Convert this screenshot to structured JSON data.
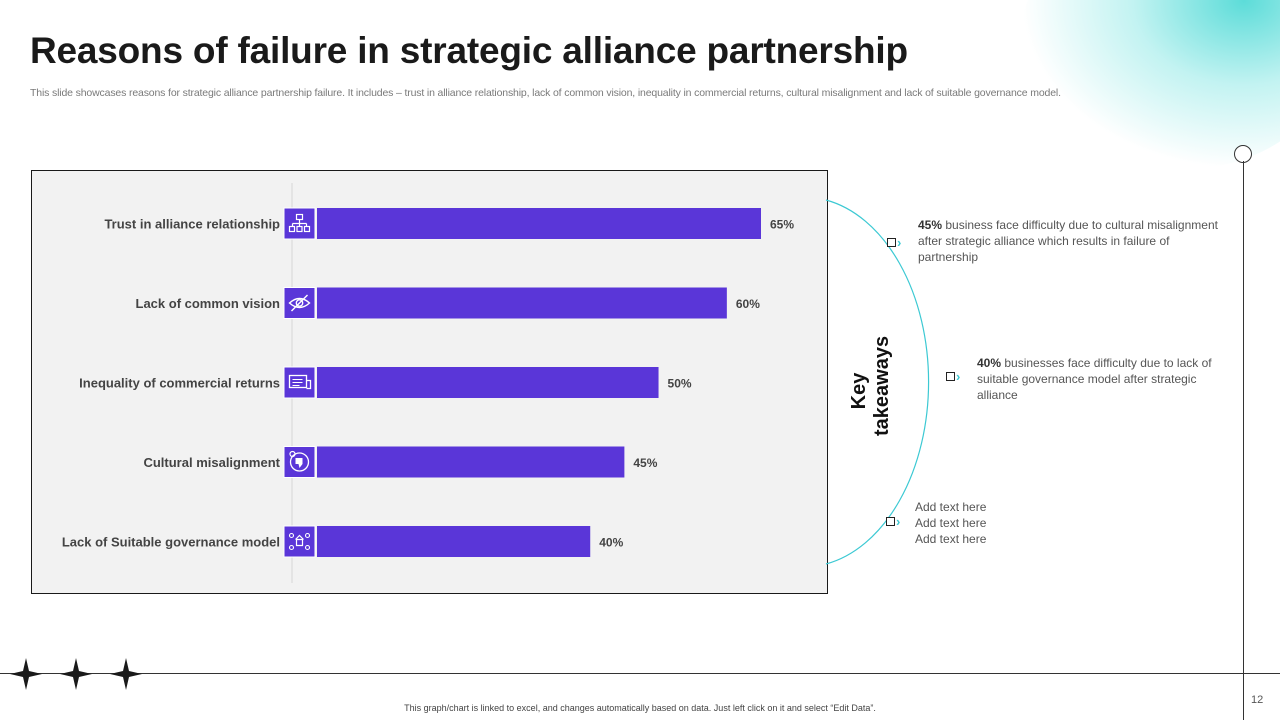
{
  "slide": {
    "title": "Reasons of failure in strategic alliance partnership",
    "subtitle": "This slide showcases reasons for strategic alliance partnership failure. It includes – trust in alliance relationship, lack of common vision, inequality in commercial returns, cultural misalignment and lack of suitable governance model.",
    "footer": "This graph/chart is linked to excel, and changes automatically based on data. Just left click on it and select “Edit Data”.",
    "page_number": "12"
  },
  "colors": {
    "bar": "#5a36d8",
    "accent_teal": "#3cc9d3"
  },
  "chart_data": {
    "type": "bar",
    "orientation": "horizontal",
    "categories": [
      "Trust in alliance relationship",
      "Lack of common vision",
      "Inequality of commercial returns",
      "Cultural misalignment",
      "Lack of Suitable governance model"
    ],
    "values": [
      65,
      60,
      50,
      45,
      40
    ],
    "value_labels": [
      "65%",
      "60%",
      "50%",
      "45%",
      "40%"
    ],
    "icons": [
      "org-chart-icon",
      "eye-icon",
      "presentation-icon",
      "thumbs-down-icon",
      "governance-icon"
    ],
    "xlim": [
      0,
      65
    ],
    "grid": false,
    "legend": "none"
  },
  "takeaways": {
    "label": "Key takeaways",
    "items": [
      {
        "bold": "45%",
        "text": " business face difficulty due to cultural misalignment after strategic alliance which results in failure  of partnership"
      },
      {
        "bold": "40%",
        "text": " businesses face difficulty due to lack of suitable governance  model after strategic alliance"
      },
      {
        "lines": [
          "Add text here",
          "Add text here",
          "Add text here"
        ]
      }
    ]
  }
}
